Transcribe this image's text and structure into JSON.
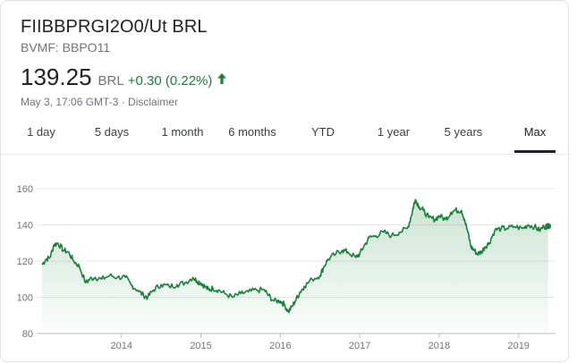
{
  "header": {
    "title": "FIIBBPRGI2O0/Ut BRL",
    "ticker": "BVMF: BBPO11",
    "price": "139.25",
    "currency": "BRL",
    "change": "+0.30 (0.22%)",
    "change_direction": "up",
    "meta": "May 3, 17:06 GMT-3 · Disclaimer"
  },
  "tabs": [
    {
      "label": "1 day",
      "active": false
    },
    {
      "label": "5 days",
      "active": false
    },
    {
      "label": "1 month",
      "active": false
    },
    {
      "label": "6 months",
      "active": false
    },
    {
      "label": "YTD",
      "active": false
    },
    {
      "label": "1 year",
      "active": false
    },
    {
      "label": "5 years",
      "active": false
    },
    {
      "label": "Max",
      "active": true
    }
  ],
  "colors": {
    "line": "#188038",
    "fill": "#188038",
    "up": "#188038"
  },
  "chart_data": {
    "type": "area",
    "ylim": [
      80,
      160
    ],
    "yticks": [
      80,
      100,
      120,
      140,
      160
    ],
    "xlim": [
      2013.0,
      2019.42
    ],
    "xticks": [
      {
        "value": 2014,
        "label": "2014"
      },
      {
        "value": 2015,
        "label": "2015"
      },
      {
        "value": 2016,
        "label": "2016"
      },
      {
        "value": 2017,
        "label": "2017"
      },
      {
        "value": 2018,
        "label": "2018"
      },
      {
        "value": 2019,
        "label": "2019"
      }
    ],
    "grid": true,
    "points": [
      [
        2013.0,
        118
      ],
      [
        2013.05,
        121
      ],
      [
        2013.1,
        122
      ],
      [
        2013.15,
        129
      ],
      [
        2013.2,
        130
      ],
      [
        2013.27,
        126
      ],
      [
        2013.33,
        125
      ],
      [
        2013.4,
        120
      ],
      [
        2013.47,
        117
      ],
      [
        2013.55,
        108
      ],
      [
        2013.6,
        110
      ],
      [
        2013.67,
        111
      ],
      [
        2013.75,
        110
      ],
      [
        2013.85,
        112
      ],
      [
        2013.95,
        111
      ],
      [
        2014.05,
        111
      ],
      [
        2014.12,
        107
      ],
      [
        2014.2,
        104
      ],
      [
        2014.28,
        101
      ],
      [
        2014.33,
        100
      ],
      [
        2014.4,
        104
      ],
      [
        2014.5,
        107
      ],
      [
        2014.6,
        106
      ],
      [
        2014.7,
        107
      ],
      [
        2014.8,
        108
      ],
      [
        2014.9,
        111
      ],
      [
        2014.95,
        109
      ],
      [
        2015.0,
        108
      ],
      [
        2015.05,
        106
      ],
      [
        2015.1,
        104
      ],
      [
        2015.15,
        105
      ],
      [
        2015.22,
        104
      ],
      [
        2015.3,
        102
      ],
      [
        2015.4,
        100
      ],
      [
        2015.5,
        102
      ],
      [
        2015.6,
        103
      ],
      [
        2015.7,
        104
      ],
      [
        2015.8,
        104
      ],
      [
        2015.85,
        101
      ],
      [
        2015.92,
        98
      ],
      [
        2016.0,
        98
      ],
      [
        2016.05,
        96
      ],
      [
        2016.1,
        92
      ],
      [
        2016.15,
        95
      ],
      [
        2016.2,
        99
      ],
      [
        2016.25,
        103
      ],
      [
        2016.3,
        106
      ],
      [
        2016.4,
        110
      ],
      [
        2016.5,
        112
      ],
      [
        2016.55,
        117
      ],
      [
        2016.6,
        121
      ],
      [
        2016.7,
        124
      ],
      [
        2016.78,
        126
      ],
      [
        2016.85,
        125
      ],
      [
        2016.95,
        122
      ],
      [
        2017.0,
        124
      ],
      [
        2017.05,
        128
      ],
      [
        2017.12,
        133
      ],
      [
        2017.2,
        134
      ],
      [
        2017.3,
        136
      ],
      [
        2017.4,
        134
      ],
      [
        2017.5,
        136
      ],
      [
        2017.6,
        138
      ],
      [
        2017.65,
        145
      ],
      [
        2017.68,
        151
      ],
      [
        2017.7,
        154
      ],
      [
        2017.75,
        150
      ],
      [
        2017.8,
        148
      ],
      [
        2017.87,
        144
      ],
      [
        2017.95,
        143
      ],
      [
        2018.0,
        145
      ],
      [
        2018.08,
        143
      ],
      [
        2018.15,
        147
      ],
      [
        2018.2,
        148
      ],
      [
        2018.28,
        148
      ],
      [
        2018.32,
        143
      ],
      [
        2018.36,
        136
      ],
      [
        2018.4,
        128
      ],
      [
        2018.44,
        126
      ],
      [
        2018.48,
        124
      ],
      [
        2018.53,
        125
      ],
      [
        2018.58,
        128
      ],
      [
        2018.63,
        130
      ],
      [
        2018.7,
        137
      ],
      [
        2018.78,
        138
      ],
      [
        2018.85,
        138
      ],
      [
        2018.95,
        139
      ],
      [
        2019.05,
        138
      ],
      [
        2019.12,
        140
      ],
      [
        2019.2,
        139
      ],
      [
        2019.26,
        137
      ],
      [
        2019.32,
        139
      ],
      [
        2019.37,
        139.25
      ]
    ]
  }
}
